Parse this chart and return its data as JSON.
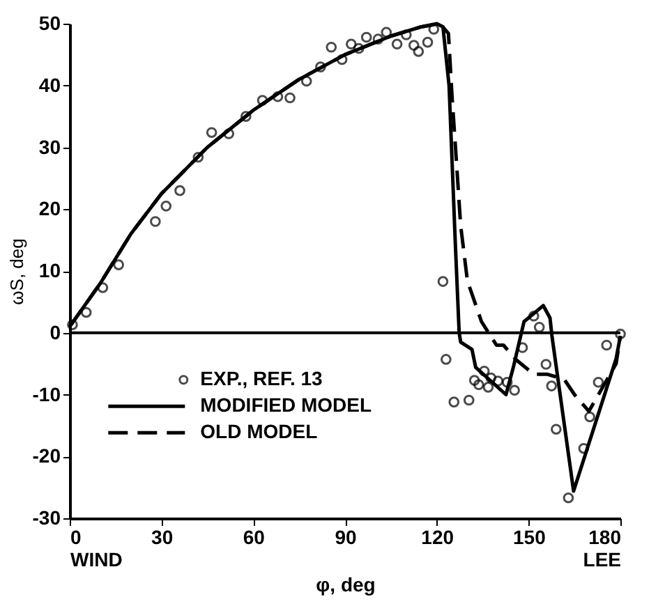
{
  "chart_data": {
    "type": "line",
    "xlabel": "φ, deg",
    "ylabel": "ωS, deg",
    "xlim": [
      0,
      180
    ],
    "xticks": [
      {
        "value": 0,
        "label": "0\nWIND"
      },
      30,
      60,
      90,
      120,
      150,
      {
        "value": 180,
        "label": "180\nLEE"
      }
    ],
    "ylim": [
      -30,
      50
    ],
    "yticks": [
      -30,
      -20,
      -10,
      0,
      10,
      20,
      30,
      40,
      50
    ],
    "grid": false,
    "legend": "bottom left",
    "ref_lines": [
      {
        "axis": "y",
        "value": 0,
        "color": "#000000"
      }
    ],
    "series": [
      {
        "name": "EXP., REF. 13",
        "type": "scatter",
        "marker": "circle",
        "color": "#000000",
        "x": [
          0.9,
          5.4,
          10.8,
          16,
          28,
          31.5,
          36,
          42,
          46.4,
          52,
          57.6,
          63,
          68,
          72,
          77.4,
          82,
          85.5,
          89,
          92,
          94.5,
          97,
          100.8,
          103.5,
          107,
          110,
          112.5,
          114,
          117,
          119,
          122,
          123,
          125.6,
          130.5,
          132.3,
          133.7,
          135.5,
          136.8,
          137.7,
          140,
          143,
          145.4,
          148,
          151.7,
          153.5,
          155.7,
          157.5,
          159,
          163,
          168,
          170,
          172.8,
          175.5,
          180
        ],
        "values": [
          1.3,
          3.3,
          7.3,
          11,
          18,
          20.5,
          23,
          28.4,
          32.4,
          32.2,
          35,
          37.6,
          38.2,
          38,
          40.7,
          43,
          46.2,
          44.2,
          46.7,
          46,
          47.8,
          47.5,
          48.6,
          46.7,
          48.2,
          46.5,
          45.5,
          47,
          49.1,
          8.3,
          -4.3,
          -11.2,
          -10.9,
          -7.7,
          -8.4,
          -6.2,
          -8.8,
          -7.3,
          -7.8,
          -8,
          -9.3,
          -2.4,
          2.7,
          0.9,
          -5.1,
          -8.6,
          -15.6,
          -26.7,
          -18.7,
          -13.6,
          -8,
          -2,
          -0.2
        ]
      },
      {
        "name": "MODIFIED MODEL",
        "line_style": "solid",
        "color": "#000000",
        "x": [
          0,
          10,
          20,
          30,
          45,
          60,
          75,
          90,
          105,
          115,
          120,
          122,
          124,
          126,
          127.3,
          127.8,
          131.5,
          132.7,
          142.6,
          145,
          148.5,
          154.8,
          157,
          157.6,
          164.7,
          178.6,
          180
        ],
        "values": [
          1,
          8,
          16,
          22.5,
          30,
          36,
          41,
          45,
          48,
          49.5,
          50,
          49.5,
          40,
          15,
          0,
          -1.5,
          -2.7,
          -5.6,
          -10,
          -5.6,
          1.8,
          4.4,
          2.4,
          -0.4,
          -25.6,
          -4.2,
          -0.5
        ]
      },
      {
        "name": "OLD MODEL",
        "line_style": "dashed",
        "color": "#000000",
        "x": [
          0,
          10,
          20,
          30,
          45,
          60,
          75,
          90,
          105,
          115,
          121,
          123.8,
          125,
          126,
          127.8,
          130,
          134.6,
          139.5,
          141.8,
          146,
          151.7,
          156,
          161.6,
          165,
          169.7,
          178.6,
          180
        ],
        "values": [
          1,
          8,
          16,
          22.5,
          30,
          36,
          41,
          45,
          48,
          49.5,
          50,
          48.4,
          38,
          30.7,
          17.3,
          8.4,
          1.8,
          -2,
          -2,
          -4.4,
          -6.7,
          -6.7,
          -7.5,
          -10,
          -12.7,
          -5,
          -0.5
        ]
      }
    ]
  }
}
